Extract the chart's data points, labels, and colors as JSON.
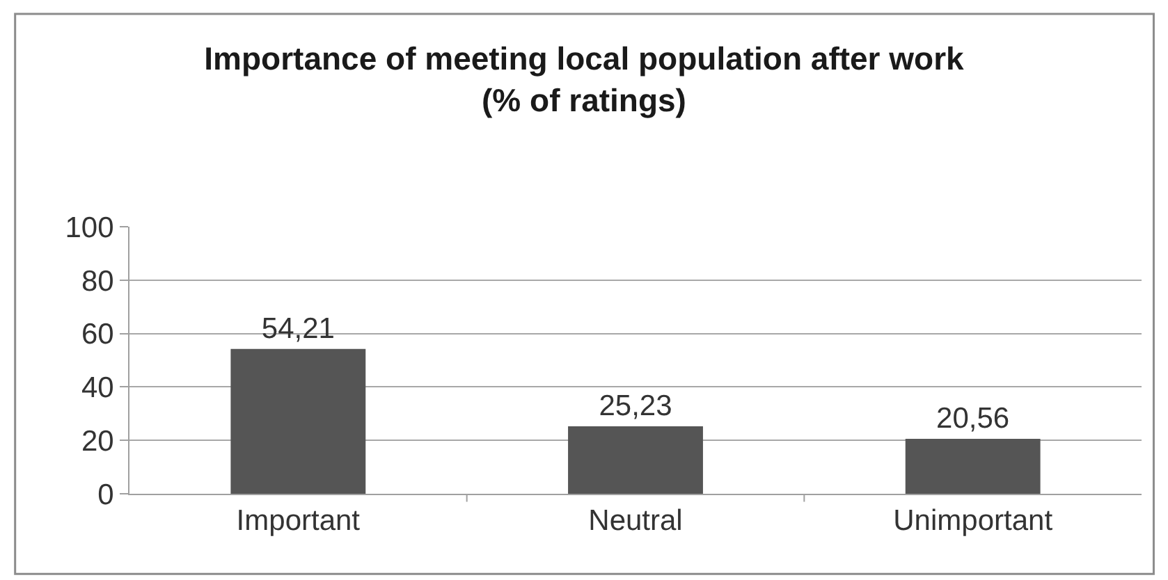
{
  "chart_data": {
    "type": "bar",
    "title": "Importance of meeting local population after work\n(% of ratings)",
    "categories": [
      "Important",
      "Neutral",
      "Unimportant"
    ],
    "values": [
      54.21,
      25.23,
      20.56
    ],
    "value_labels": [
      "54,21",
      "25,23",
      "20,56"
    ],
    "color": "#555555",
    "ylim": [
      0,
      100
    ],
    "yticks": [
      0,
      20,
      40,
      60,
      80,
      100
    ],
    "grid": "y"
  }
}
